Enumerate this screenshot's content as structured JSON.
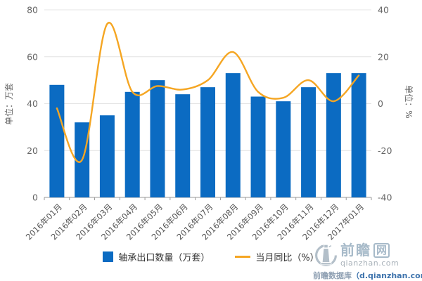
{
  "chart": {
    "left_axis": {
      "title": "单位：万套",
      "ticks": [
        0,
        20,
        40,
        60,
        80
      ]
    },
    "right_axis": {
      "title": "单位：%",
      "ticks": [
        -40,
        -20,
        0,
        20,
        40
      ]
    }
  },
  "chart_data": {
    "type": "bar+line combo",
    "title": "",
    "categories": [
      "2016年01月",
      "2016年02月",
      "2016年03月",
      "2016年04月",
      "2016年05月",
      "2016年06月",
      "2016年07月",
      "2016年08月",
      "2016年09月",
      "2016年10月",
      "2016年11月",
      "2016年12月",
      "2017年01月"
    ],
    "series": [
      {
        "name": "轴承出口数量（万套）",
        "type": "bar",
        "axis": "left",
        "color": "#0b6bc2",
        "values": [
          48,
          32,
          35,
          45,
          50,
          44,
          47,
          53,
          43,
          41,
          47,
          53,
          53
        ]
      },
      {
        "name": "当月同比（%）",
        "type": "line",
        "axis": "right",
        "color": "#f5a623",
        "smooth": true,
        "values": [
          -2,
          -24,
          34,
          5,
          7.5,
          6,
          10,
          22,
          5,
          2.5,
          10,
          1,
          12
        ]
      }
    ],
    "left_ylim": [
      0,
      80
    ],
    "right_ylim": [
      -40,
      40
    ],
    "grid": true,
    "legend_position": "bottom"
  },
  "legend": {
    "items": [
      {
        "label": "轴承出口数量（万套）",
        "color": "#0b6bc2",
        "marker": "square"
      },
      {
        "label": "当月同比（%）",
        "color": "#f5a623",
        "marker": "line"
      }
    ]
  },
  "colors": {
    "bar": "#0b6bc2",
    "line": "#f5a623",
    "gridline": "#e4e4e4",
    "axis_line": "#999999",
    "tick_text": "#666666"
  },
  "watermark": {
    "brand": "前瞻",
    "brand_box": "网",
    "domain": "qianzhan.com",
    "db_label": "前瞻数据库",
    "db_url": "（d.qianzhan.com）"
  }
}
